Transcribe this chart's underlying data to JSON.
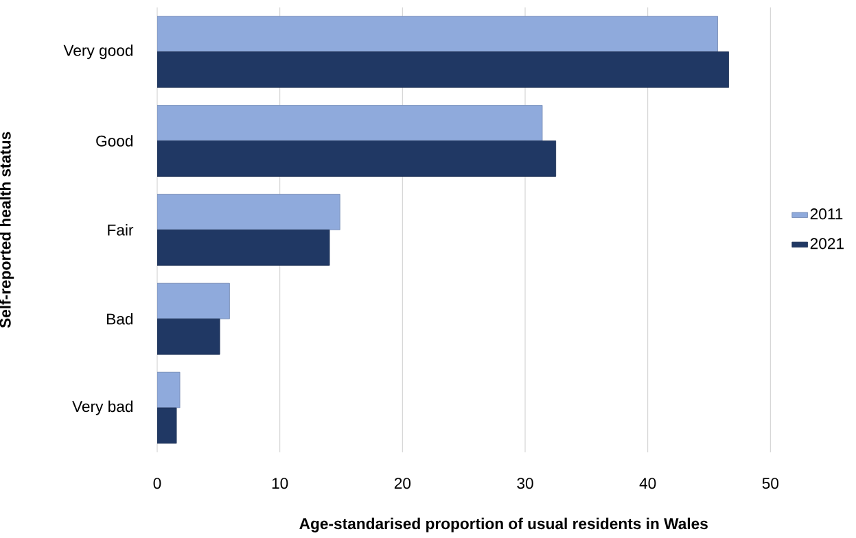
{
  "chart_data": {
    "type": "bar",
    "orientation": "horizontal",
    "categories": [
      "Very good",
      "Good",
      "Fair",
      "Bad",
      "Very bad"
    ],
    "series": [
      {
        "name": "2011",
        "color": "#8faadc",
        "values": [
          45.7,
          31.4,
          14.9,
          5.9,
          1.85
        ]
      },
      {
        "name": "2021",
        "color": "#203864",
        "values": [
          46.6,
          32.5,
          14.05,
          5.1,
          1.57
        ]
      }
    ],
    "xlabel": "Age-standarised proportion of usual residents in Wales",
    "ylabel": "Self-reported health status",
    "xlim": [
      0,
      50
    ],
    "xticks": [
      0,
      10,
      20,
      30,
      40,
      50
    ],
    "grid": "x",
    "legend": "right"
  }
}
